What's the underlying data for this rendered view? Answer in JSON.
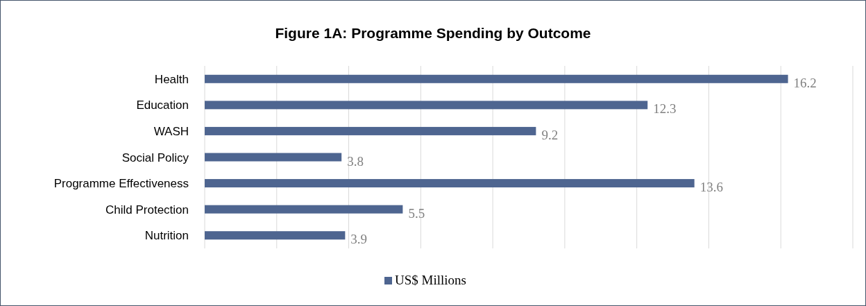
{
  "chart_data": {
    "type": "bar",
    "orientation": "horizontal",
    "title": "Figure 1A: Programme Spending by Outcome",
    "categories": [
      "Health",
      "Education",
      "WASH",
      "Social Policy",
      "Programme Effectiveness",
      "Child Protection",
      "Nutrition"
    ],
    "series": [
      {
        "name": "US$ Millions",
        "color": "#4e6590",
        "values": [
          16.2,
          12.3,
          9.2,
          3.8,
          13.6,
          5.5,
          3.9
        ]
      }
    ],
    "xlim": [
      0,
      18
    ],
    "xticks": [
      {
        "value": 0,
        "label": null
      },
      {
        "value": 2,
        "label": null
      },
      {
        "value": 4,
        "label": null
      },
      {
        "value": 6,
        "label": null
      },
      {
        "value": 8,
        "label": null
      },
      {
        "value": 10,
        "label": null
      },
      {
        "value": 12,
        "label": null
      },
      {
        "value": 14,
        "label": null
      },
      {
        "value": 16,
        "label": null
      },
      {
        "value": 18,
        "label": null
      }
    ],
    "tick_labels": "y",
    "grid": "x",
    "legend": "bottom",
    "data_labels": true
  }
}
